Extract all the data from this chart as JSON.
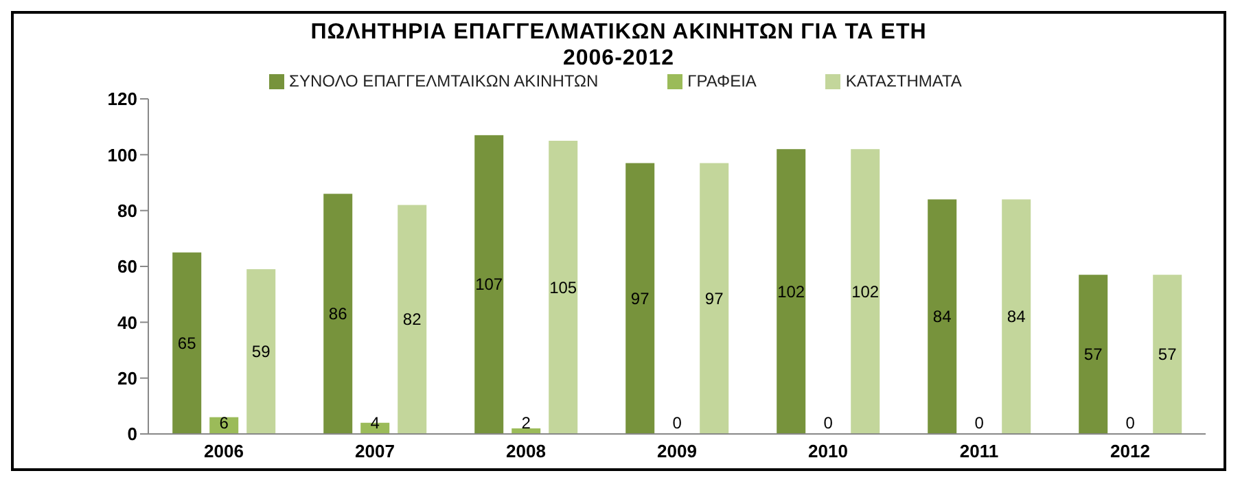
{
  "chart_data": {
    "type": "bar",
    "title": "ΠΩΛΗΤΗΡΙΑ ΕΠΑΓΓΕΛΜΑΤΙΚΩΝ ΑΚΙΝΗΤΩΝ ΓΙΑ ΤΑ ΕΤΗ 2006-2012",
    "categories": [
      "2006",
      "2007",
      "2008",
      "2009",
      "2010",
      "2011",
      "2012"
    ],
    "series": [
      {
        "name": "ΣΥΝΟΛΟ ΕΠΑΓΓΕΛΜΤΑΙΚΩΝ ΑΚΙΝΗΤΩΝ",
        "color": "#77933c",
        "values": [
          65,
          86,
          107,
          97,
          102,
          84,
          57
        ]
      },
      {
        "name": "ΓΡΑΦΕΙΑ",
        "color": "#9bbb59",
        "values": [
          6,
          4,
          2,
          0,
          0,
          0,
          0
        ]
      },
      {
        "name": "ΚΑΤΑΣΤΗΜΑΤΑ",
        "color": "#c3d69b",
        "values": [
          59,
          82,
          105,
          97,
          102,
          84,
          57
        ]
      }
    ],
    "ylim": [
      0,
      120
    ],
    "yticks": [
      0,
      20,
      40,
      60,
      80,
      100,
      120
    ],
    "grid": false,
    "legend": "top",
    "data_labels": true
  }
}
